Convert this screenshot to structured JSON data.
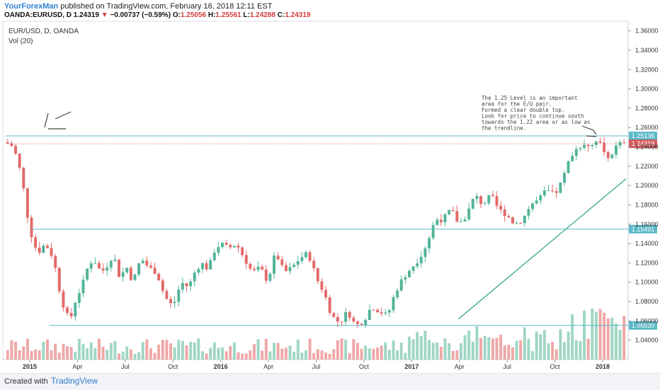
{
  "header": {
    "author": "YourForexMan",
    "published": " published on TradingView.com, February 16, 2018 12:11 EST",
    "symbol": "OANDA:EURUSD, D",
    "last": "1.24319",
    "change": "−0.00737 (−0.59%)",
    "o_label": "O:",
    "o": "1.25056",
    "h_label": "H:",
    "h": "1.25561",
    "l_label": "L:",
    "l": "1.24288",
    "c_label": "C:",
    "c": "1.24319",
    "down_arrow": "▼"
  },
  "footer": {
    "created_with": "Created with",
    "brand": "TradingView"
  },
  "colors": {
    "bull": "#52b49a",
    "bear": "#e36a6a",
    "vol_bull": "#9fd6c4",
    "vol_bear": "#f0a7a7",
    "level": "#5bb8c8",
    "price_line": "#d25a5a",
    "trend": "#23a37a",
    "vol_ma": "#e8a56b"
  },
  "chart_data": {
    "type": "candlestick",
    "title": "EUR/USD, D, OANDA",
    "indicator": "Vol (20)",
    "ylim": [
      1.02,
      1.37
    ],
    "y_ticks": [
      "1.36000",
      "1.34000",
      "1.32000",
      "1.30000",
      "1.28000",
      "1.26000",
      "1.24000",
      "1.22000",
      "1.20000",
      "1.18000",
      "1.16000",
      "1.14000",
      "1.12000",
      "1.10000",
      "1.08000",
      "1.06000",
      "1.04000"
    ],
    "x_ticks": [
      "2015",
      "Apr",
      "Jul",
      "Oct",
      "2016",
      "Apr",
      "Jul",
      "Oct",
      "2017",
      "Apr",
      "Jul",
      "Oct",
      "2018"
    ],
    "x_ticks_bold": [
      "2015",
      "2016",
      "2017",
      "2018"
    ],
    "price_path": [
      [
        0,
        1.245
      ],
      [
        2,
        1.24
      ],
      [
        4,
        1.21
      ],
      [
        6,
        1.155
      ],
      [
        8,
        1.13
      ],
      [
        10,
        1.14
      ],
      [
        12,
        1.125
      ],
      [
        14,
        1.082
      ],
      [
        16,
        1.06
      ],
      [
        17,
        1.07
      ],
      [
        18,
        1.09
      ],
      [
        19,
        1.09
      ],
      [
        20,
        1.11
      ],
      [
        22,
        1.125
      ],
      [
        24,
        1.11
      ],
      [
        26,
        1.12
      ],
      [
        27,
        1.13
      ],
      [
        28,
        1.115
      ],
      [
        29,
        1.1
      ],
      [
        30,
        1.12
      ],
      [
        32,
        1.1
      ],
      [
        34,
        1.125
      ],
      [
        36,
        1.115
      ],
      [
        38,
        1.11
      ],
      [
        40,
        1.085
      ],
      [
        42,
        1.075
      ],
      [
        43,
        1.085
      ],
      [
        44,
        1.1
      ],
      [
        46,
        1.095
      ],
      [
        48,
        1.115
      ],
      [
        50,
        1.12
      ],
      [
        51,
        1.11
      ],
      [
        52,
        1.13
      ],
      [
        54,
        1.14
      ],
      [
        56,
        1.135
      ],
      [
        58,
        1.14
      ],
      [
        60,
        1.125
      ],
      [
        62,
        1.11
      ],
      [
        64,
        1.115
      ],
      [
        66,
        1.1
      ],
      [
        67,
        1.12
      ],
      [
        68,
        1.13
      ],
      [
        70,
        1.11
      ],
      [
        72,
        1.115
      ],
      [
        74,
        1.125
      ],
      [
        76,
        1.13
      ],
      [
        77,
        1.12
      ],
      [
        78,
        1.105
      ],
      [
        80,
        1.09
      ],
      [
        82,
        1.065
      ],
      [
        84,
        1.058
      ],
      [
        86,
        1.07
      ],
      [
        88,
        1.055
      ],
      [
        90,
        1.06
      ],
      [
        92,
        1.075
      ],
      [
        94,
        1.07
      ],
      [
        96,
        1.065
      ],
      [
        98,
        1.09
      ],
      [
        100,
        1.105
      ],
      [
        102,
        1.115
      ],
      [
        104,
        1.125
      ],
      [
        106,
        1.14
      ],
      [
        108,
        1.165
      ],
      [
        110,
        1.165
      ],
      [
        112,
        1.175
      ],
      [
        114,
        1.16
      ],
      [
        116,
        1.17
      ],
      [
        118,
        1.19
      ],
      [
        120,
        1.18
      ],
      [
        122,
        1.19
      ],
      [
        124,
        1.175
      ],
      [
        126,
        1.17
      ],
      [
        128,
        1.16
      ],
      [
        130,
        1.165
      ],
      [
        132,
        1.18
      ],
      [
        134,
        1.185
      ],
      [
        136,
        1.195
      ],
      [
        138,
        1.19
      ],
      [
        140,
        1.205
      ],
      [
        142,
        1.23
      ],
      [
        144,
        1.24
      ],
      [
        146,
        1.245
      ],
      [
        147,
        1.24
      ],
      [
        149,
        1.25
      ],
      [
        150,
        1.235
      ],
      [
        152,
        1.23
      ],
      [
        154,
        1.2431
      ]
    ],
    "levels": [
      {
        "value": 1.25136,
        "label": "1.25136",
        "from": 0.0
      },
      {
        "value": 1.15491,
        "label": "1.15491",
        "from": 0.04
      },
      {
        "value": 1.0553,
        "label": "1.05530",
        "from": 0.07
      }
    ],
    "last_price": {
      "value": 1.24319,
      "label": "1.24319"
    },
    "trendline": {
      "x1": 0.73,
      "y1": 1.062,
      "x2": 1.0,
      "y2": 1.207
    },
    "annotation": "The 1.25 Level is an important\narea for the E/U pair.\nFormed a clear double top.\nLook for price to continue south\ntowards the 1.22 area or as low as\nthe trendline."
  }
}
